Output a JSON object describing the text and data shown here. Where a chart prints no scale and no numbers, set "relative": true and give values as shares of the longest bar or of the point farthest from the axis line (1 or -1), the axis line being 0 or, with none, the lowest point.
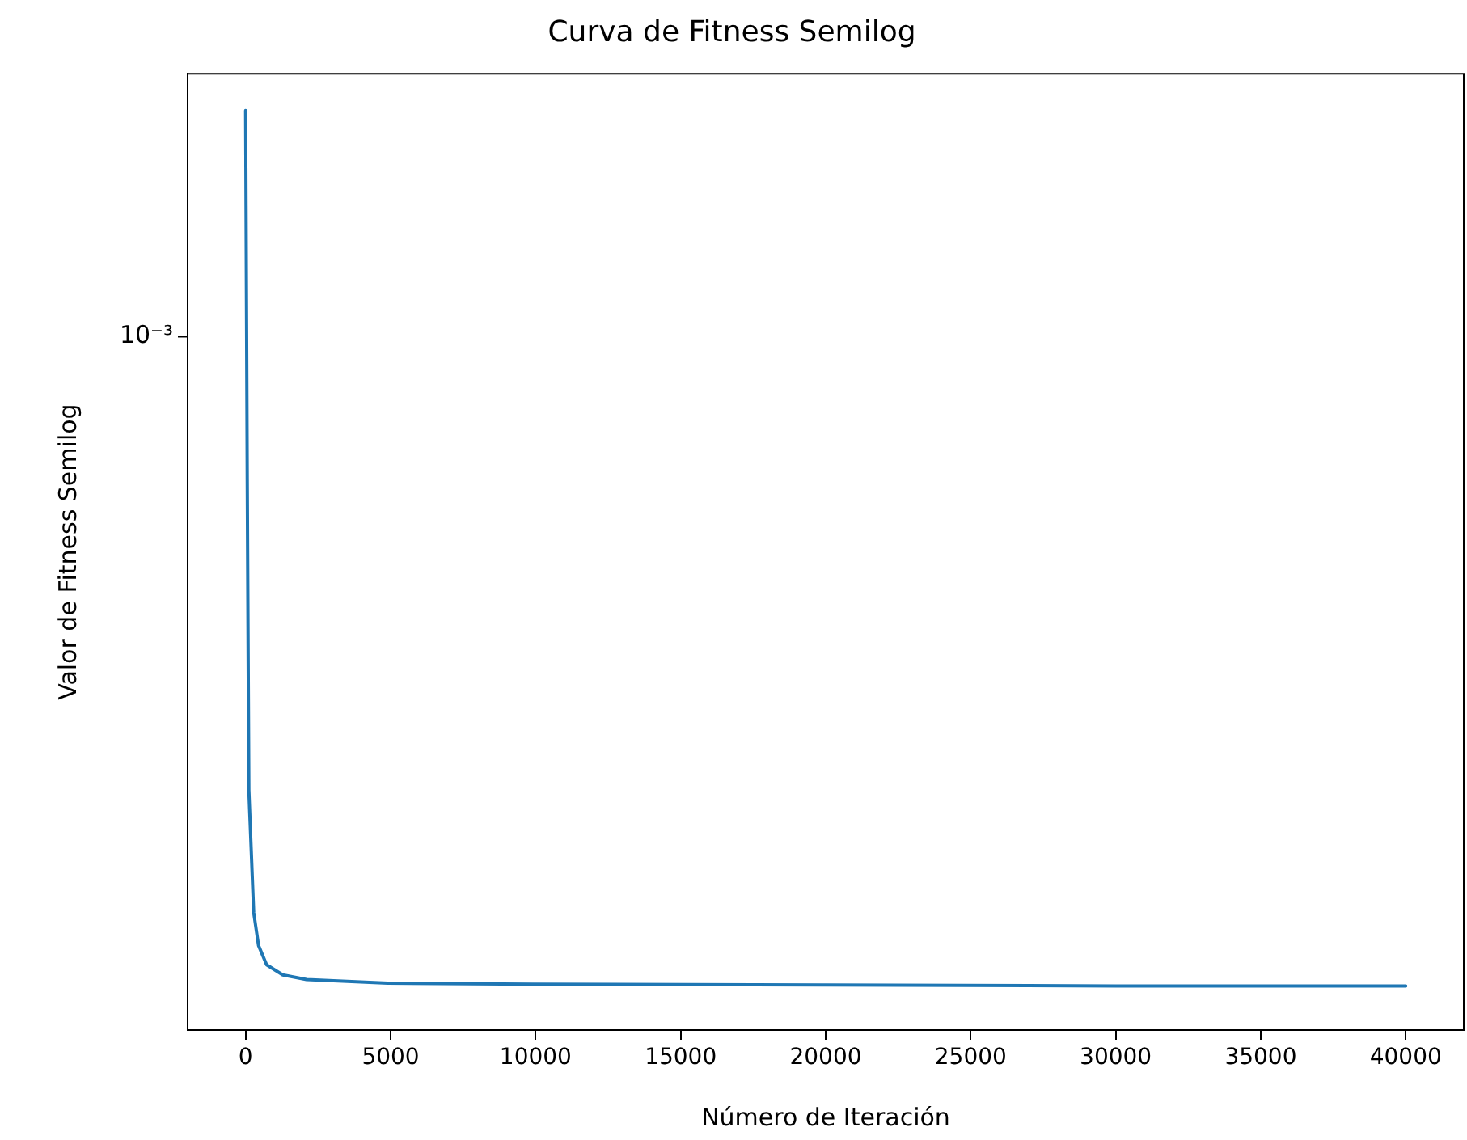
{
  "chart_data": {
    "type": "line",
    "title": "Curva de Fitness Semilog",
    "xlabel": "Número de Iteración",
    "ylabel": "Valor de Fitness Semilog",
    "relative": true,
    "annotations": [
      "10⁻³"
    ],
    "grid": false,
    "legend": false,
    "marker": "none",
    "line_style": "solid",
    "x": [
      0,
      56,
      111,
      278,
      445,
      723,
      1280,
      2100,
      4900,
      9900,
      20000,
      30000,
      40000
    ],
    "series": [
      {
        "color": "#1f77b4",
        "values": [
          1,
          0.598,
          0.261,
          0.128,
          0.092,
          0.071,
          0.06,
          0.055,
          0.051,
          0.05,
          0.049,
          0.048,
          0.048
        ]
      }
    ],
    "xlim": [
      -2000,
      42000
    ],
    "xticks": [
      0,
      5000,
      10000,
      15000,
      20000,
      25000,
      30000,
      35000,
      40000
    ]
  }
}
